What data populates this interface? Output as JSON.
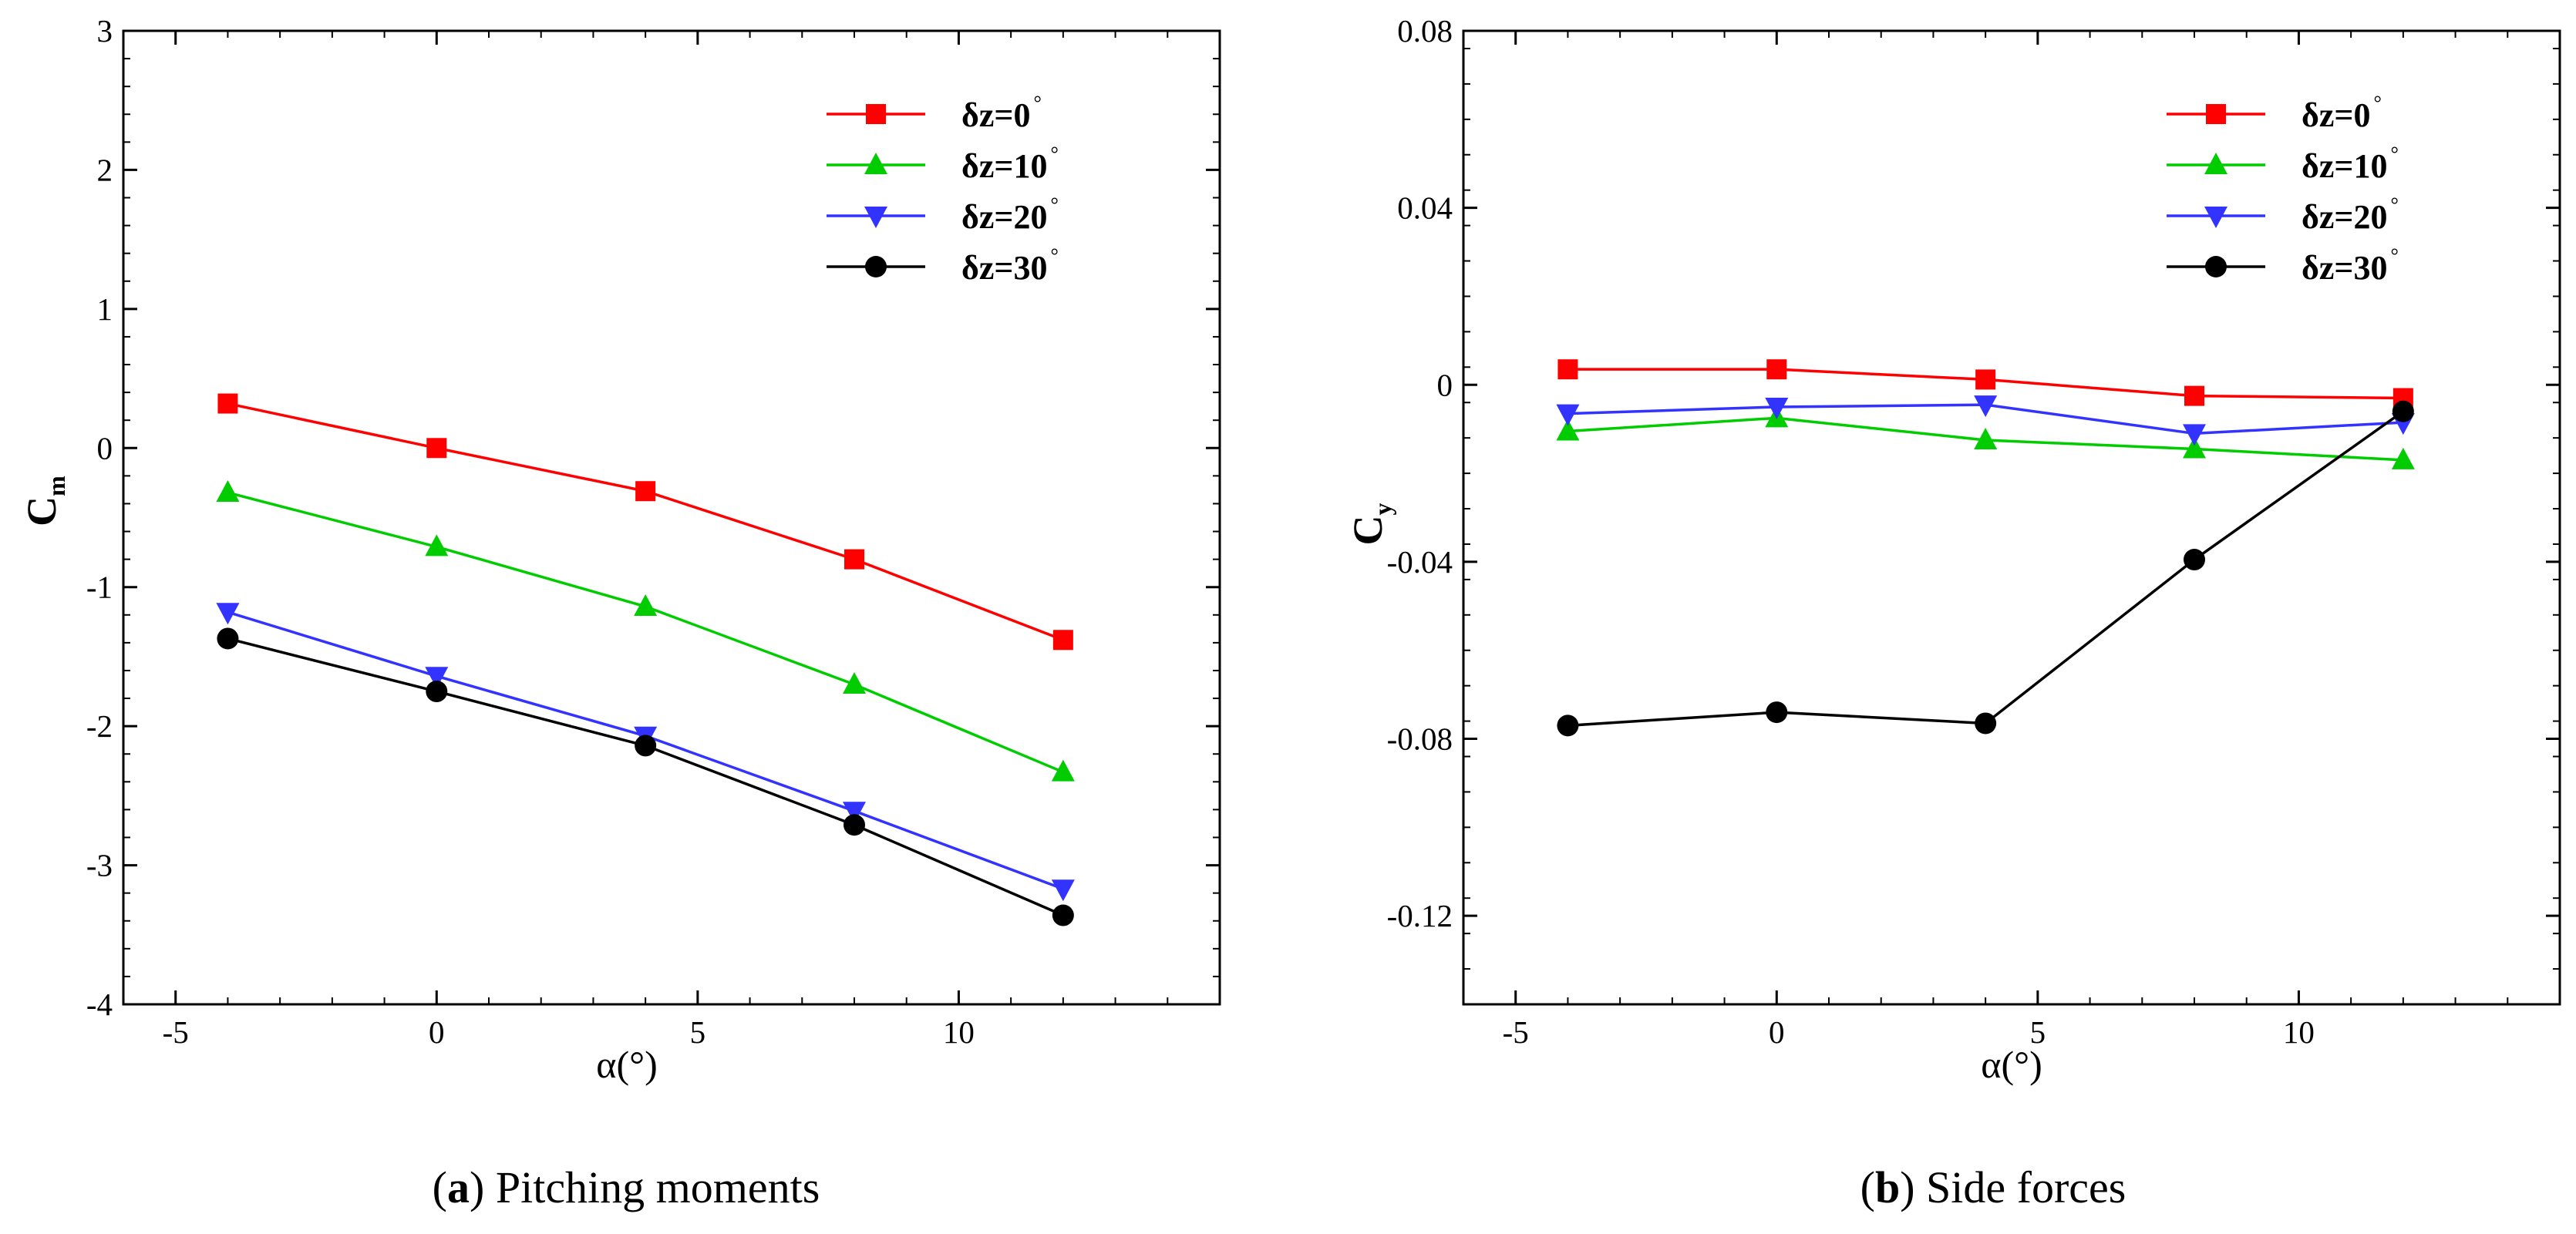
{
  "chart_data": [
    {
      "id": "a",
      "type": "line",
      "title": "",
      "xlabel": "α(°)",
      "ylabel": "C",
      "ylabel_sub": "m",
      "xlim": [
        -6,
        15
      ],
      "ylim": [
        -4,
        3
      ],
      "xticks": [
        -5,
        0,
        5,
        10
      ],
      "xtick_labels": [
        "-5",
        "0",
        "5",
        "10"
      ],
      "yticks": [
        -4,
        -3,
        -2,
        -1,
        0,
        1,
        2,
        3
      ],
      "ytick_labels": [
        "-4",
        "-3",
        "-2",
        "-1",
        "0",
        "1",
        "2",
        "3"
      ],
      "x": [
        -4,
        0,
        4,
        8,
        12
      ],
      "legend_position": "top-right",
      "series": [
        {
          "name": "δz=0",
          "sup": "°",
          "color": "#ff0000",
          "marker": "square",
          "values": [
            0.32,
            0.0,
            -0.31,
            -0.8,
            -1.38
          ]
        },
        {
          "name": "δz=10",
          "sup": "°",
          "color": "#00cc00",
          "marker": "triangle-up",
          "values": [
            -0.32,
            -0.71,
            -1.14,
            -1.7,
            -2.33
          ]
        },
        {
          "name": "δz=20",
          "sup": "°",
          "color": "#3333ff",
          "marker": "triangle-down",
          "values": [
            -1.18,
            -1.64,
            -2.07,
            -2.61,
            -3.17
          ]
        },
        {
          "name": "δz=30",
          "sup": "°",
          "color": "#000000",
          "marker": "circle",
          "values": [
            -1.37,
            -1.75,
            -2.14,
            -2.71,
            -3.36
          ]
        }
      ]
    },
    {
      "id": "b",
      "type": "line",
      "title": "",
      "xlabel": "α(°)",
      "ylabel": "C",
      "ylabel_sub": "y",
      "xlim": [
        -6,
        15
      ],
      "ylim": [
        -0.14,
        0.08
      ],
      "xticks": [
        -5,
        0,
        5,
        10
      ],
      "xtick_labels": [
        "-5",
        "0",
        "5",
        "10"
      ],
      "yticks": [
        -0.12,
        -0.08,
        -0.04,
        0,
        0.04,
        0.08
      ],
      "ytick_labels": [
        "-0.12",
        "-0.08",
        "-0.04",
        "0",
        "0.04",
        "0.08"
      ],
      "x": [
        -4,
        0,
        4,
        8,
        12
      ],
      "legend_position": "top-right",
      "series": [
        {
          "name": "δz=0",
          "sup": "°",
          "color": "#ff0000",
          "marker": "square",
          "values": [
            0.0035,
            0.0035,
            0.0012,
            -0.0025,
            -0.003
          ]
        },
        {
          "name": "δz=10",
          "sup": "°",
          "color": "#00cc00",
          "marker": "triangle-up",
          "values": [
            -0.0105,
            -0.0075,
            -0.0125,
            -0.0145,
            -0.017
          ]
        },
        {
          "name": "δz=20",
          "sup": "°",
          "color": "#3333ff",
          "marker": "triangle-down",
          "values": [
            -0.0065,
            -0.005,
            -0.0045,
            -0.011,
            -0.0085
          ]
        },
        {
          "name": "δz=30",
          "sup": "°",
          "color": "#000000",
          "marker": "circle",
          "values": [
            -0.077,
            -0.074,
            -0.0765,
            -0.0395,
            -0.006
          ]
        }
      ]
    }
  ],
  "captions": [
    {
      "letter": "a",
      "text": "Pitching moments"
    },
    {
      "letter": "b",
      "text": "Side forces"
    }
  ]
}
